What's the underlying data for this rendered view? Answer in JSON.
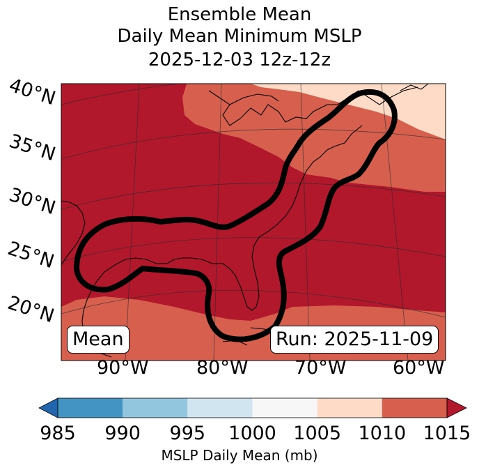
{
  "title": {
    "line1": "Ensemble Mean",
    "line2": "Daily Mean Minimum MSLP",
    "line3": "2025-12-03 12z-12z"
  },
  "map": {
    "lat_labels": [
      "40°N",
      "35°N",
      "30°N",
      "25°N",
      "20°N"
    ],
    "lon_labels": [
      "90°W",
      "80°W",
      "70°W",
      "60°W"
    ],
    "badge_left": "Mean",
    "badge_right": "Run: 2025-11-09"
  },
  "colorbar": {
    "ticks": [
      "985",
      "990",
      "995",
      "1000",
      "1005",
      "1010",
      "1015"
    ],
    "colors": [
      "#2166ac",
      "#4393c3",
      "#92c5de",
      "#d1e5f0",
      "#f7f7f7",
      "#fddbc7",
      "#d6604d",
      "#b2182b"
    ],
    "label": "MSLP Daily Mean (mb)"
  },
  "fill_colors": {
    "band_1005_1010": "#fddbc7",
    "band_1010_1015": "#d6604d",
    "band_above_1015": "#b2182b"
  }
}
